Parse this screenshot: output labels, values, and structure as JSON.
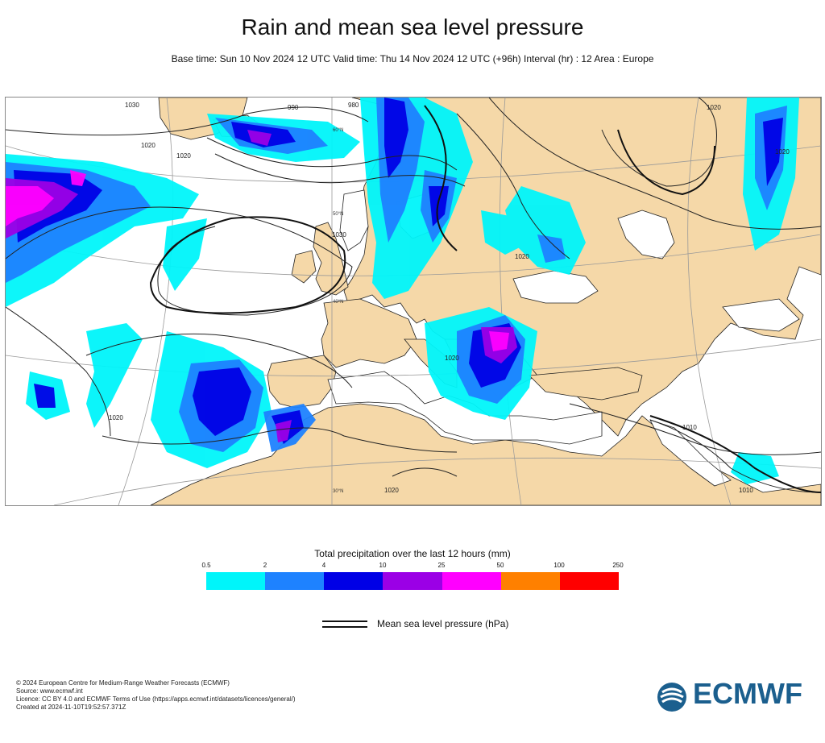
{
  "title": "Rain and mean sea level pressure",
  "subtitle": "Base time: Sun 10 Nov 2024 12 UTC Valid time: Thu 14 Nov 2024 12 UTC (+96h) Interval (hr) : 12 Area : Europe",
  "legend": {
    "title": "Total precipitation over the last 12 hours (mm)",
    "ticks": [
      "0.5",
      "2",
      "4",
      "10",
      "25",
      "50",
      "100",
      "250"
    ],
    "colors": [
      "#00f5fa",
      "#1e82ff",
      "#0000e6",
      "#9b00e6",
      "#ff00ff",
      "#ff8000",
      "#ff0000"
    ]
  },
  "mslp_legend": {
    "label": "Mean sea level pressure (hPa)"
  },
  "map": {
    "land_color": "#f5d8a8",
    "sea_color": "#ffffff",
    "isobar_labels": [
      "1030",
      "1020",
      "1020",
      "990",
      "980",
      "1020",
      "1020",
      "1030",
      "1020",
      "1020",
      "1010",
      "1020",
      "1010",
      "1020"
    ],
    "grid_labels": [
      "60°N",
      "50°N",
      "40°N",
      "30°N"
    ]
  },
  "footer": {
    "line1": "© 2024 European Centre for Medium-Range Weather Forecasts (ECMWF)",
    "line2": "Source: www.ecmwf.int",
    "line3": "Licence: CC BY 4.0 and ECMWF Terms of Use (https://apps.ecmwf.int/datasets/licences/general/)",
    "line4": "Created at 2024-11-10T19:52:57.371Z"
  },
  "logo": {
    "text": "ECMWF",
    "color": "#1b5f8e"
  }
}
